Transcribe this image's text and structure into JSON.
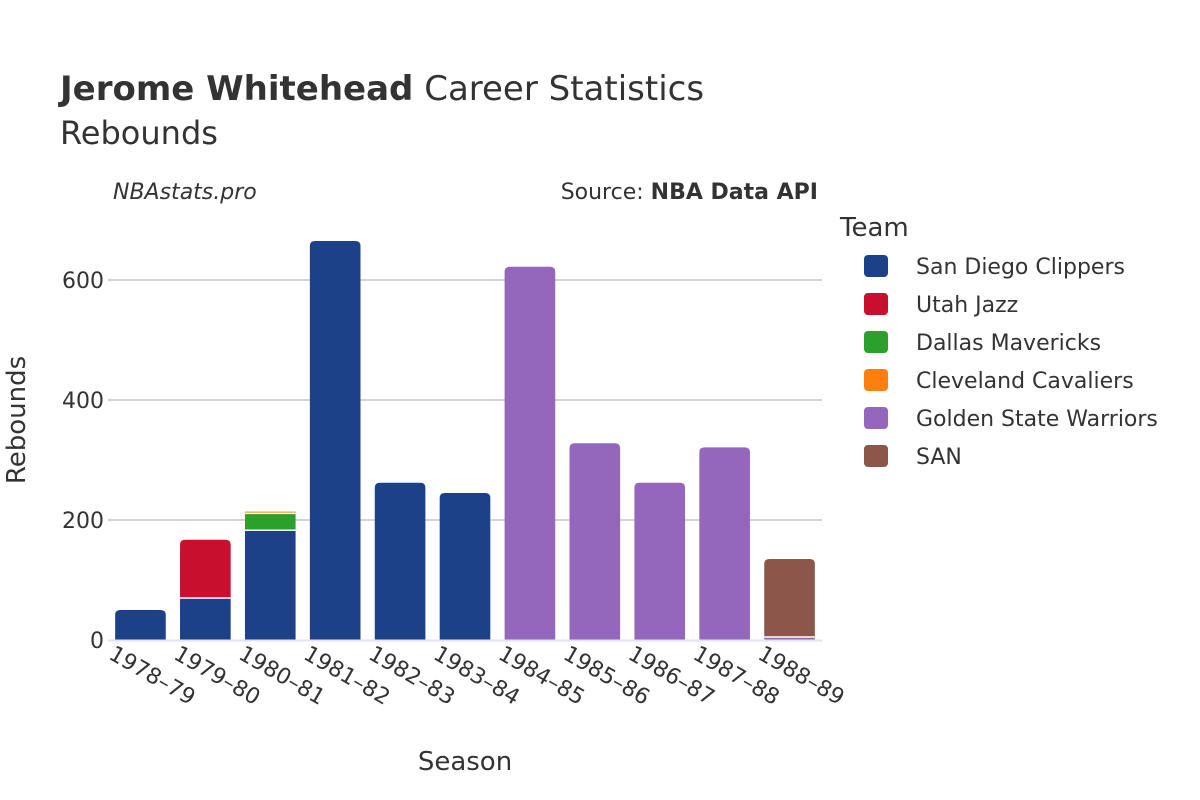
{
  "header": {
    "title_bold": "Jerome Whitehead",
    "title_rest": " Career Statistics",
    "subtitle": "Rebounds",
    "watermark": "NBAstats.pro",
    "source_prefix": "Source: ",
    "source_name": "NBA Data API"
  },
  "chart_data": {
    "type": "bar",
    "stacked": true,
    "title": "Jerome Whitehead Career Statistics",
    "subtitle": "Rebounds",
    "xlabel": "Season",
    "ylabel": "Rebounds",
    "ylim": [
      0,
      700
    ],
    "yticks": [
      0,
      200,
      400,
      600
    ],
    "grid": true,
    "legend_title": "Team",
    "legend_position": "right",
    "categories": [
      "1978–79",
      "1979–80",
      "1980–81",
      "1981–82",
      "1982–83",
      "1983–84",
      "1984–85",
      "1985–86",
      "1986–87",
      "1987–88",
      "1988–89"
    ],
    "series": [
      {
        "name": "San Diego Clippers",
        "color": "#1c4189",
        "values": [
          50,
          70,
          183,
          665,
          262,
          245,
          0,
          0,
          0,
          0,
          0
        ]
      },
      {
        "name": "Utah Jazz",
        "color": "#c8102e",
        "values": [
          0,
          97,
          0,
          0,
          0,
          0,
          0,
          0,
          0,
          0,
          0
        ]
      },
      {
        "name": "Dallas Mavericks",
        "color": "#2ca02c",
        "values": [
          0,
          0,
          28,
          0,
          0,
          0,
          0,
          0,
          0,
          0,
          0
        ]
      },
      {
        "name": "Cleveland Cavaliers",
        "color": "#ff7f0e",
        "values": [
          0,
          0,
          3,
          0,
          0,
          0,
          0,
          0,
          0,
          0,
          0
        ]
      },
      {
        "name": "Golden State Warriors",
        "color": "#9467bd",
        "values": [
          0,
          0,
          0,
          0,
          0,
          0,
          622,
          328,
          262,
          321,
          5
        ]
      },
      {
        "name": "SAN",
        "color": "#8c564b",
        "values": [
          0,
          0,
          0,
          0,
          0,
          0,
          0,
          0,
          0,
          0,
          130
        ]
      }
    ]
  }
}
